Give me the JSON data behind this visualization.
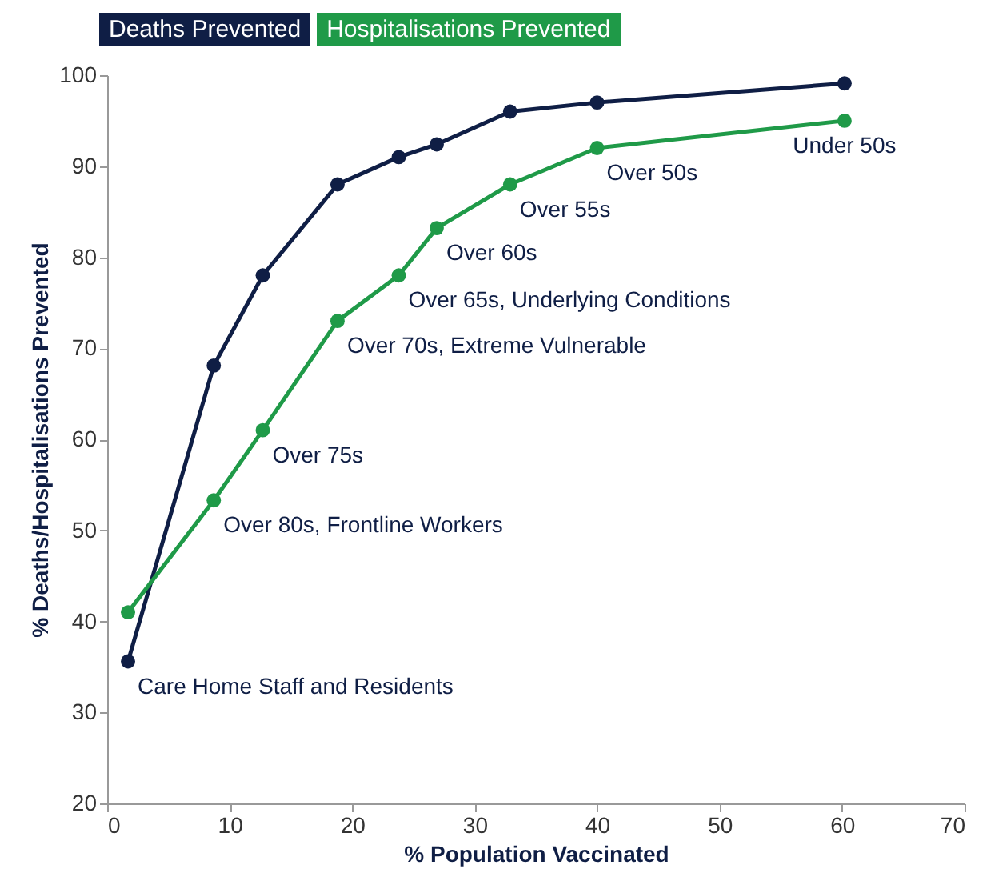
{
  "chart_data": {
    "type": "line",
    "xlabel": "% Population Vaccinated",
    "ylabel": "% Deaths/Hospitalisations Prevented",
    "xlim": [
      0,
      70
    ],
    "xticks": [
      0,
      10,
      20,
      30,
      40,
      50,
      60,
      70
    ],
    "ylim": [
      20,
      100
    ],
    "yticks": [
      20,
      30,
      40,
      50,
      60,
      70,
      80,
      90,
      100
    ],
    "x": [
      1.7,
      8.7,
      12.7,
      18.8,
      23.8,
      26.9,
      32.9,
      40,
      60.2
    ],
    "series": [
      {
        "name": "Deaths Prevented",
        "color": "#0f1e45",
        "values": [
          35.6,
          68.1,
          78,
          88,
          91,
          92.4,
          96,
          97,
          99.1
        ]
      },
      {
        "name": "Hospitalisations Prevented",
        "color": "#1f9a48",
        "values": [
          41,
          53.3,
          61,
          73,
          78,
          83.2,
          88,
          92,
          95
        ]
      }
    ],
    "annotations": [
      {
        "text": "Care Home Staff and Residents",
        "x": 1.7,
        "y": 35.6
      },
      {
        "text": "Over 80s, Frontline Workers",
        "x": 8.7,
        "y": 53.3
      },
      {
        "text": "Over 75s",
        "x": 12.7,
        "y": 61
      },
      {
        "text": "Over 70s, Extreme Vulnerable",
        "x": 18.8,
        "y": 73
      },
      {
        "text": "Over 65s, Underlying Conditions",
        "x": 23.8,
        "y": 78
      },
      {
        "text": "Over 60s",
        "x": 26.9,
        "y": 83.2
      },
      {
        "text": "Over 55s",
        "x": 32.9,
        "y": 88
      },
      {
        "text": "Over 50s",
        "x": 40,
        "y": 92
      },
      {
        "text": "Under 50s",
        "x": 60.2,
        "y": 95
      }
    ],
    "marker": "circle",
    "line_style": "solid",
    "grid": false,
    "legend": "top left"
  }
}
